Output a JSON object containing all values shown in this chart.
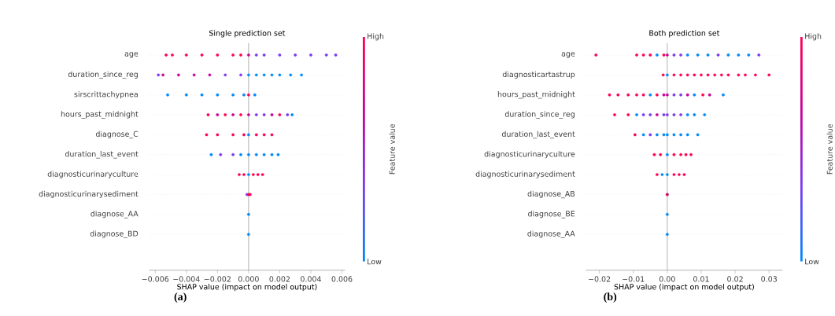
{
  "chart_data": [
    {
      "type": "scatter",
      "orientation": "horizontal",
      "title": "Single prediction set",
      "xlabel": "SHAP value (impact on model output)",
      "clabel": "Feature value",
      "categories": [
        "age",
        "duration_since_reg",
        "sirscrittachypnea",
        "hours_past_midnight",
        "diagnose_C",
        "duration_last_event",
        "diagnosticurinaryculture",
        "diagnosticurinarysediment",
        "diagnose_AA",
        "diagnose_BD"
      ],
      "series": [
        {
          "x": [
            "age",
            "age",
            "age",
            "age",
            "age",
            "age",
            "age",
            "age",
            "age",
            "age",
            "age",
            "age",
            "age",
            "age",
            "age"
          ],
          "values": [
            -0.0053,
            -0.0049,
            -0.004,
            -0.003,
            -0.002,
            -0.001,
            -0.0005,
            0,
            0.0005,
            0.001,
            0.002,
            0.003,
            0.004,
            0.005,
            0.0056
          ],
          "colors": [
            "#ff0052",
            "#ff0052",
            "#ff0052",
            "#ff0052",
            "#ff0052",
            "#ff0052",
            "#ff0052",
            "#c800a0",
            "#7c3aee",
            "#7c3aee",
            "#7c3aee",
            "#7c3aee",
            "#7c3aee",
            "#7c3aee",
            "#7c3aee"
          ]
        },
        {
          "x": [
            "duration_since_reg",
            "duration_since_reg",
            "duration_since_reg",
            "duration_since_reg",
            "duration_since_reg",
            "duration_since_reg",
            "duration_since_reg",
            "duration_since_reg",
            "duration_since_reg",
            "duration_since_reg",
            "duration_since_reg",
            "duration_since_reg",
            "duration_since_reg",
            "duration_since_reg"
          ],
          "values": [
            -0.0058,
            -0.0055,
            -0.0045,
            -0.0035,
            -0.0025,
            -0.0015,
            -0.0005,
            0,
            0.0005,
            0.001,
            0.0015,
            0.002,
            0.0027,
            0.0034
          ],
          "colors": [
            "#7c3aee",
            "#c800a0",
            "#c800a0",
            "#c800a0",
            "#c800a0",
            "#7c3aee",
            "#7c3aee",
            "#008afb",
            "#008afb",
            "#008afb",
            "#008afb",
            "#008afb",
            "#008afb",
            "#008afb"
          ]
        },
        {
          "x": [
            "sirscrittachypnea",
            "sirscrittachypnea",
            "sirscrittachypnea",
            "sirscrittachypnea",
            "sirscrittachypnea",
            "sirscrittachypnea",
            "sirscrittachypnea",
            "sirscrittachypnea"
          ],
          "values": [
            -0.0052,
            -0.004,
            -0.003,
            -0.002,
            -0.001,
            -0.0003,
            0,
            0.0004
          ],
          "colors": [
            "#008afb",
            "#008afb",
            "#008afb",
            "#008afb",
            "#008afb",
            "#008afb",
            "#ff0052",
            "#008afb"
          ]
        },
        {
          "x": [
            "hours_past_midnight",
            "hours_past_midnight",
            "hours_past_midnight",
            "hours_past_midnight",
            "hours_past_midnight",
            "hours_past_midnight",
            "hours_past_midnight",
            "hours_past_midnight",
            "hours_past_midnight",
            "hours_past_midnight",
            "hours_past_midnight",
            "hours_past_midnight"
          ],
          "values": [
            -0.0026,
            -0.002,
            -0.0015,
            -0.001,
            -0.0005,
            0,
            0.0005,
            0.001,
            0.0015,
            0.002,
            0.0025,
            0.0028
          ],
          "colors": [
            "#ff0052",
            "#c800a0",
            "#ff0052",
            "#c800a0",
            "#ff0052",
            "#c800a0",
            "#7c3aee",
            "#7c3aee",
            "#c800a0",
            "#ff0052",
            "#7c3aee",
            "#008afb"
          ]
        },
        {
          "x": [
            "diagnose_C",
            "diagnose_C",
            "diagnose_C",
            "diagnose_C",
            "diagnose_C",
            "diagnose_C",
            "diagnose_C",
            "diagnose_C"
          ],
          "values": [
            -0.0027,
            -0.002,
            -0.001,
            -0.0003,
            0,
            0.0005,
            0.001,
            0.0015
          ],
          "colors": [
            "#ff0052",
            "#ff0052",
            "#ff0052",
            "#ff0052",
            "#008afb",
            "#ff0052",
            "#ff0052",
            "#ff0052"
          ]
        },
        {
          "x": [
            "duration_last_event",
            "duration_last_event",
            "duration_last_event",
            "duration_last_event",
            "duration_last_event",
            "duration_last_event",
            "duration_last_event",
            "duration_last_event",
            "duration_last_event"
          ],
          "values": [
            -0.0024,
            -0.0018,
            -0.001,
            -0.0005,
            0,
            0.0005,
            0.001,
            0.0015,
            0.0019
          ],
          "colors": [
            "#008afb",
            "#7c3aee",
            "#7c3aee",
            "#008afb",
            "#008afb",
            "#008afb",
            "#008afb",
            "#008afb",
            "#008afb"
          ]
        },
        {
          "x": [
            "diagnosticurinaryculture",
            "diagnosticurinaryculture",
            "diagnosticurinaryculture",
            "diagnosticurinaryculture",
            "diagnosticurinaryculture",
            "diagnosticurinaryculture"
          ],
          "values": [
            -0.0006,
            -0.0003,
            0,
            0.0003,
            0.0006,
            0.0009
          ],
          "colors": [
            "#ff0052",
            "#ff0052",
            "#008afb",
            "#ff0052",
            "#ff0052",
            "#ff0052"
          ]
        },
        {
          "x": [
            "diagnosticurinarysediment",
            "diagnosticurinarysediment",
            "diagnosticurinarysediment"
          ],
          "values": [
            -0.0001,
            0,
            0.0001
          ],
          "colors": [
            "#7c3aee",
            "#ff0052",
            "#ff0052"
          ]
        },
        {
          "x": [
            "diagnose_AA"
          ],
          "values": [
            0
          ],
          "colors": [
            "#008afb"
          ]
        },
        {
          "x": [
            "diagnose_BD"
          ],
          "values": [
            0
          ],
          "colors": [
            "#008afb"
          ]
        }
      ],
      "xlim": [
        -0.0064,
        0.0062
      ],
      "xticks": [
        {
          "value": -0.006,
          "label": "−0.006"
        },
        {
          "value": -0.004,
          "label": "−0.004"
        },
        {
          "value": -0.002,
          "label": "−0.002"
        },
        {
          "value": 0,
          "label": "0.000"
        },
        {
          "value": 0.002,
          "label": "0.002"
        },
        {
          "value": 0.004,
          "label": "0.004"
        },
        {
          "value": 0.006,
          "label": "0.006"
        }
      ],
      "cticks": [
        {
          "label": "Low"
        },
        {
          "label": "High"
        }
      ],
      "ref_lines": [
        {
          "axis": "x",
          "value": 0,
          "color": "#999999"
        }
      ],
      "grid": "y",
      "marker": "circle",
      "annotations": [
        "(a)"
      ]
    },
    {
      "type": "scatter",
      "orientation": "horizontal",
      "title": "Both prediction set",
      "xlabel": "SHAP value (impact on model output)",
      "clabel": "Feature value",
      "categories": [
        "age",
        "diagnosticartastrup",
        "hours_past_midnight",
        "duration_since_reg",
        "duration_last_event",
        "diagnosticurinaryculture",
        "diagnosticurinarysediment",
        "diagnose_AB",
        "diagnose_BE",
        "diagnose_AA"
      ],
      "series": [
        {
          "x": [
            "age",
            "age",
            "age",
            "age",
            "age",
            "age",
            "age",
            "age",
            "age",
            "age",
            "age",
            "age",
            "age",
            "age",
            "age",
            "age",
            "age"
          ],
          "values": [
            -0.021,
            -0.009,
            -0.007,
            -0.005,
            -0.003,
            -0.001,
            0,
            0.002,
            0.004,
            0.006,
            0.009,
            0.012,
            0.015,
            0.018,
            0.021,
            0.024,
            0.027
          ],
          "colors": [
            "#ff0052",
            "#ff0052",
            "#ff0052",
            "#ff0052",
            "#008afb",
            "#ff0052",
            "#c800a0",
            "#7c3aee",
            "#7c3aee",
            "#008afb",
            "#008afb",
            "#008afb",
            "#7c3aee",
            "#008afb",
            "#008afb",
            "#008afb",
            "#7c3aee"
          ]
        },
        {
          "x": [
            "diagnosticartastrup",
            "diagnosticartastrup",
            "diagnosticartastrup",
            "diagnosticartastrup",
            "diagnosticartastrup",
            "diagnosticartastrup",
            "diagnosticartastrup",
            "diagnosticartastrup",
            "diagnosticartastrup",
            "diagnosticartastrup",
            "diagnosticartastrup",
            "diagnosticartastrup",
            "diagnosticartastrup",
            "diagnosticartastrup",
            "diagnosticartastrup"
          ],
          "values": [
            -0.0012,
            0,
            0.002,
            0.004,
            0.006,
            0.008,
            0.01,
            0.012,
            0.014,
            0.016,
            0.018,
            0.021,
            0.023,
            0.026,
            0.03
          ],
          "colors": [
            "#ff0052",
            "#008afb",
            "#ff0052",
            "#ff0052",
            "#ff0052",
            "#ff0052",
            "#ff0052",
            "#ff0052",
            "#ff0052",
            "#ff0052",
            "#ff0052",
            "#ff0052",
            "#ff0052",
            "#ff0052",
            "#ff0052"
          ]
        },
        {
          "x": [
            "hours_past_midnight",
            "hours_past_midnight",
            "hours_past_midnight",
            "hours_past_midnight",
            "hours_past_midnight",
            "hours_past_midnight",
            "hours_past_midnight",
            "hours_past_midnight",
            "hours_past_midnight",
            "hours_past_midnight",
            "hours_past_midnight",
            "hours_past_midnight",
            "hours_past_midnight",
            "hours_past_midnight",
            "hours_past_midnight",
            "hours_past_midnight"
          ],
          "values": [
            -0.017,
            -0.0145,
            -0.0115,
            -0.009,
            -0.007,
            -0.005,
            -0.003,
            -0.001,
            0,
            0.002,
            0.004,
            0.006,
            0.008,
            0.0105,
            0.0125,
            0.0165
          ],
          "colors": [
            "#ff0052",
            "#ff0052",
            "#ff0052",
            "#ff0052",
            "#ff0052",
            "#008afb",
            "#ff0052",
            "#c800a0",
            "#c800a0",
            "#7c3aee",
            "#7c3aee",
            "#c800a0",
            "#008afb",
            "#ff0052",
            "#c800a0",
            "#008afb"
          ]
        },
        {
          "x": [
            "duration_since_reg",
            "duration_since_reg",
            "duration_since_reg",
            "duration_since_reg",
            "duration_since_reg",
            "duration_since_reg",
            "duration_since_reg",
            "duration_since_reg",
            "duration_since_reg",
            "duration_since_reg",
            "duration_since_reg",
            "duration_since_reg",
            "duration_since_reg"
          ],
          "values": [
            -0.0155,
            -0.0115,
            -0.009,
            -0.007,
            -0.005,
            -0.003,
            -0.001,
            0,
            0.002,
            0.004,
            0.006,
            0.008,
            0.011
          ],
          "colors": [
            "#ff0052",
            "#ff0052",
            "#008afb",
            "#7c3aee",
            "#7c3aee",
            "#c800a0",
            "#7c3aee",
            "#7c3aee",
            "#7c3aee",
            "#7c3aee",
            "#008afb",
            "#008afb",
            "#008afb"
          ]
        },
        {
          "x": [
            "duration_last_event",
            "duration_last_event",
            "duration_last_event",
            "duration_last_event",
            "duration_last_event",
            "duration_last_event",
            "duration_last_event",
            "duration_last_event",
            "duration_last_event",
            "duration_last_event"
          ],
          "values": [
            -0.0095,
            -0.007,
            -0.005,
            -0.003,
            -0.001,
            0,
            0.002,
            0.004,
            0.006,
            0.009
          ],
          "colors": [
            "#ff0052",
            "#008afb",
            "#7c3aee",
            "#008afb",
            "#008afb",
            "#008afb",
            "#008afb",
            "#008afb",
            "#008afb",
            "#008afb"
          ]
        },
        {
          "x": [
            "diagnosticurinaryculture",
            "diagnosticurinaryculture",
            "diagnosticurinaryculture",
            "diagnosticurinaryculture",
            "diagnosticurinaryculture",
            "diagnosticurinaryculture",
            "diagnosticurinaryculture"
          ],
          "values": [
            -0.0038,
            -0.002,
            0,
            0.002,
            0.004,
            0.0055,
            0.007
          ],
          "colors": [
            "#ff0052",
            "#ff0052",
            "#008afb",
            "#ff0052",
            "#ff0052",
            "#ff0052",
            "#ff0052"
          ]
        },
        {
          "x": [
            "diagnosticurinarysediment",
            "diagnosticurinarysediment",
            "diagnosticurinarysediment",
            "diagnosticurinarysediment",
            "diagnosticurinarysediment",
            "diagnosticurinarysediment"
          ],
          "values": [
            -0.003,
            -0.0015,
            0,
            0.002,
            0.0035,
            0.005
          ],
          "colors": [
            "#ff0052",
            "#008afb",
            "#008afb",
            "#ff0052",
            "#ff0052",
            "#ff0052"
          ]
        },
        {
          "x": [
            "diagnose_AB",
            "diagnose_AB"
          ],
          "values": [
            0,
            0
          ],
          "colors": [
            "#008afb",
            "#ff0052"
          ]
        },
        {
          "x": [
            "diagnose_BE"
          ],
          "values": [
            0
          ],
          "colors": [
            "#008afb"
          ]
        },
        {
          "x": [
            "diagnose_AA"
          ],
          "values": [
            0
          ],
          "colors": [
            "#008afb"
          ]
        }
      ],
      "xlim": [
        -0.024,
        0.034
      ],
      "xticks": [
        {
          "value": -0.02,
          "label": "−0.02"
        },
        {
          "value": -0.01,
          "label": "−0.01"
        },
        {
          "value": 0,
          "label": "0.00"
        },
        {
          "value": 0.01,
          "label": "0.01"
        },
        {
          "value": 0.02,
          "label": "0.02"
        },
        {
          "value": 0.03,
          "label": "0.03"
        }
      ],
      "cticks": [
        {
          "label": "Low"
        },
        {
          "label": "High"
        }
      ],
      "ref_lines": [
        {
          "axis": "x",
          "value": 0,
          "color": "#999999"
        }
      ],
      "grid": "y",
      "marker": "circle",
      "annotations": [
        "(b)"
      ]
    }
  ]
}
